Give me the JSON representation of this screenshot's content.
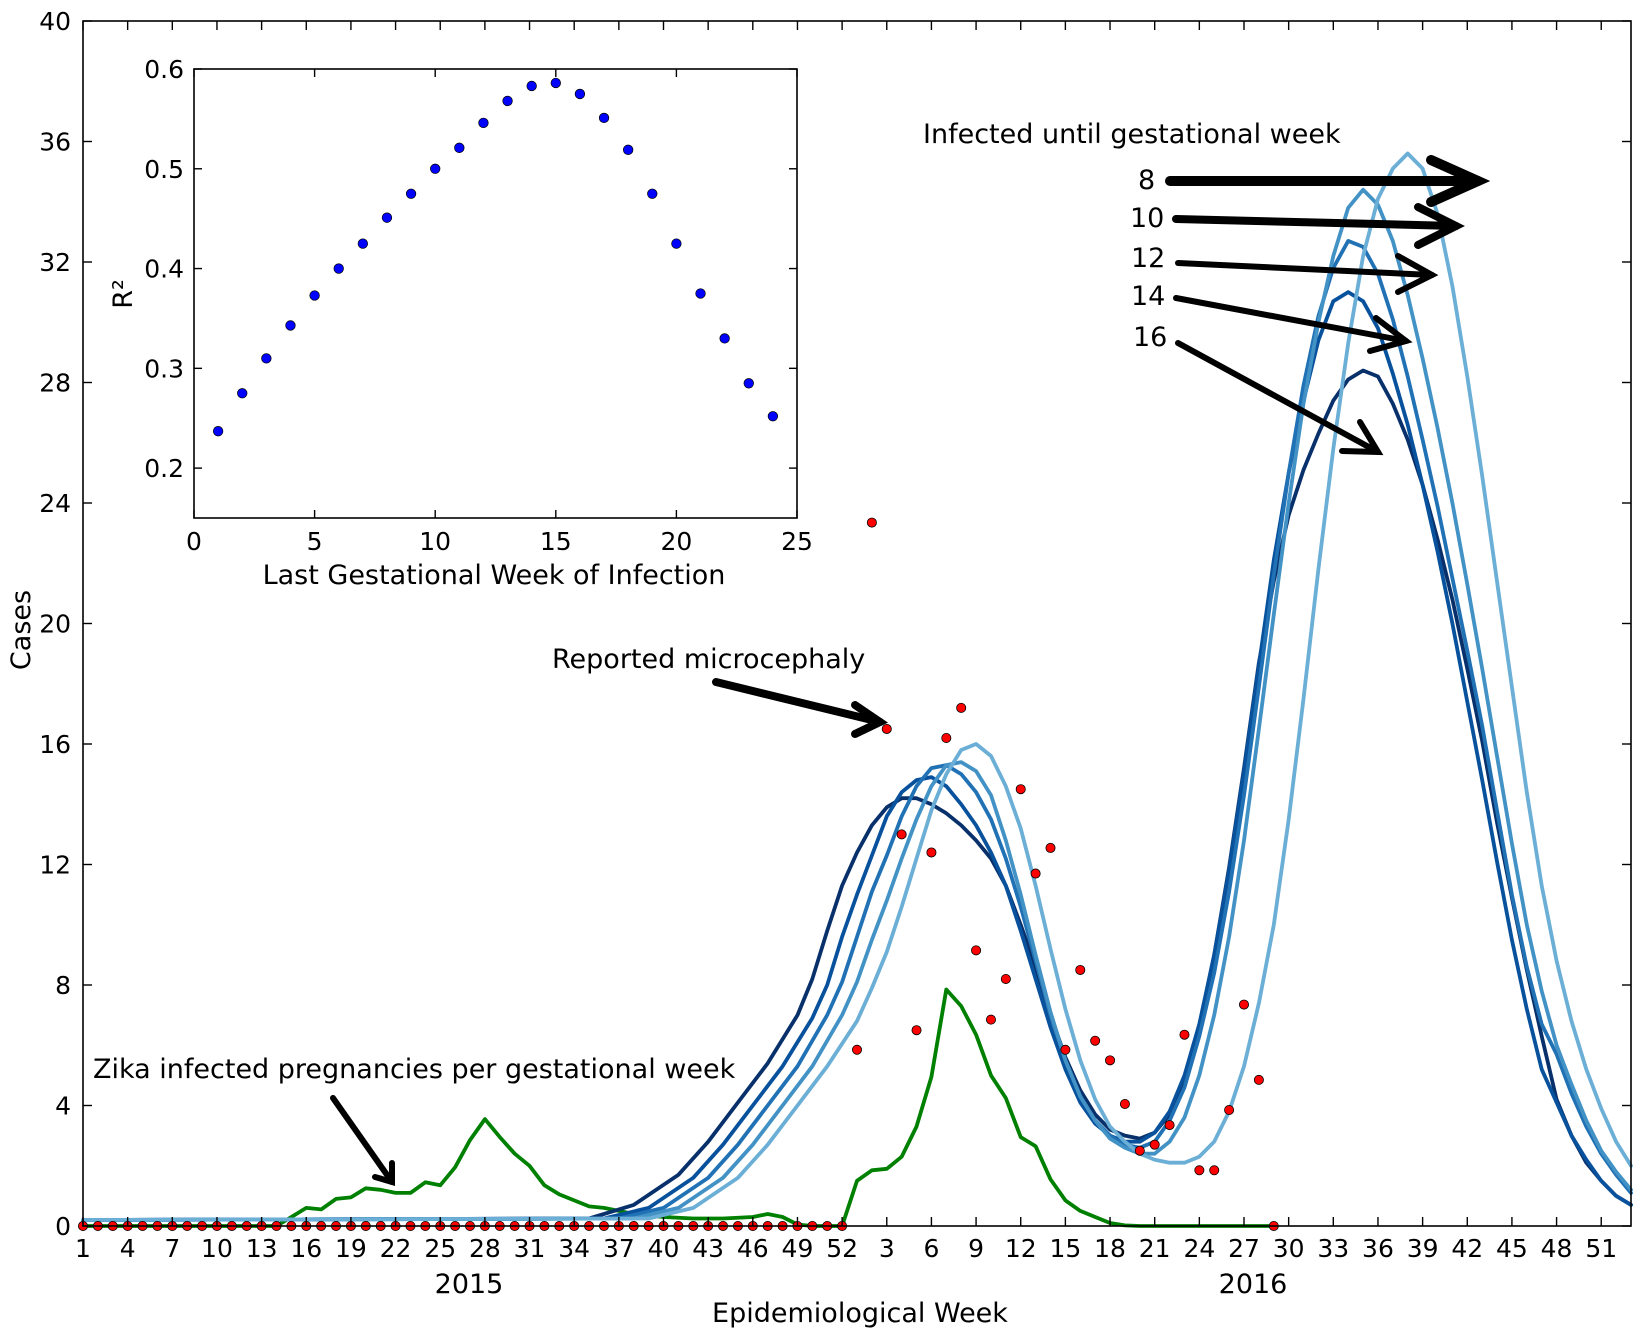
{
  "chart_data": [
    {
      "type": "line",
      "ylabel": "Cases",
      "xlabel": "Epidemiological Week",
      "ylim": [
        0,
        40
      ],
      "y_ticks": [
        0,
        4,
        8,
        12,
        16,
        20,
        24,
        28,
        32,
        36,
        40
      ],
      "x_tick_labels": [
        "1",
        "4",
        "7",
        "10",
        "13",
        "16",
        "19",
        "22",
        "25",
        "28",
        "31",
        "34",
        "37",
        "40",
        "43",
        "46",
        "49",
        "52",
        "3",
        "6",
        "9",
        "12",
        "15",
        "18",
        "21",
        "24",
        "27",
        "30",
        "33",
        "36",
        "39",
        "42",
        "45",
        "48",
        "51"
      ],
      "year_labels": [
        "2015",
        "2016"
      ],
      "x_unit": "week index (1 = 2015 week 1; 53 = 2016 week 1)",
      "series": [
        {
          "name": "Zika infected pregnancies per gestational week",
          "color": "#008000",
          "x": [
            1,
            14,
            15,
            16,
            17,
            18,
            19,
            20,
            21,
            22,
            23,
            24,
            25,
            26,
            27,
            28,
            29,
            30,
            31,
            32,
            33,
            34,
            35,
            36,
            37,
            38,
            40,
            42,
            44,
            46,
            47,
            48,
            49,
            50,
            51,
            52,
            53,
            54,
            55,
            56,
            57,
            58,
            59,
            60,
            61,
            62,
            63,
            64,
            65,
            66,
            67,
            68,
            69,
            70,
            71,
            72,
            74,
            76,
            78,
            80,
            81
          ],
          "values": [
            0,
            0,
            0.3,
            0.6,
            0.55,
            0.9,
            0.95,
            1.25,
            1.2,
            1.1,
            1.1,
            1.45,
            1.35,
            1.95,
            2.85,
            3.55,
            2.95,
            2.4,
            2.0,
            1.35,
            1.05,
            0.85,
            0.65,
            0.6,
            0.5,
            0.4,
            0.3,
            0.25,
            0.25,
            0.3,
            0.4,
            0.3,
            0.05,
            0,
            0,
            0,
            1.5,
            1.85,
            1.9,
            2.3,
            3.3,
            4.95,
            7.85,
            7.3,
            6.35,
            5.0,
            4.25,
            2.95,
            2.65,
            1.55,
            0.85,
            0.5,
            0.3,
            0.1,
            0.02,
            0,
            0,
            0,
            0,
            0,
            0
          ]
        },
        {
          "name": "Infected until gestational week 16",
          "color": "#08306b",
          "x": [
            1,
            35,
            38,
            41,
            43,
            45,
            47,
            49,
            50,
            51,
            52,
            53,
            54,
            55,
            56,
            57,
            58,
            59,
            60,
            61,
            62,
            63,
            64,
            65,
            66,
            67,
            68,
            69,
            70,
            71,
            72,
            73,
            74,
            75,
            76,
            77,
            78,
            79,
            80,
            81,
            82,
            83,
            84,
            85,
            86,
            87,
            88,
            89,
            90,
            91,
            92,
            93,
            94,
            95,
            96,
            97,
            98,
            99,
            100,
            101,
            102,
            103,
            104,
            105
          ],
          "values": [
            0.2,
            0.25,
            0.7,
            1.7,
            2.8,
            4.1,
            5.4,
            7.0,
            8.2,
            9.8,
            11.3,
            12.4,
            13.3,
            13.9,
            14.2,
            14.2,
            14.0,
            13.7,
            13.3,
            12.8,
            12.2,
            11.3,
            10.0,
            8.6,
            7.0,
            5.6,
            4.5,
            3.7,
            3.2,
            3.0,
            2.9,
            3.1,
            3.7,
            4.9,
            6.6,
            9.0,
            11.9,
            15.2,
            18.7,
            21.4,
            23.6,
            25.1,
            26.3,
            27.4,
            28.1,
            28.4,
            28.2,
            27.3,
            26.1,
            24.6,
            22.8,
            20.8,
            18.5,
            16.1,
            13.4,
            10.9,
            8.5,
            6.3,
            4.2,
            3.0,
            2.1,
            1.5,
            1.0,
            0.7
          ]
        },
        {
          "name": "Infected until gestational week 14",
          "color": "#08519c",
          "x": [
            1,
            36,
            39,
            42,
            44,
            46,
            48,
            50,
            51,
            52,
            53,
            54,
            55,
            56,
            57,
            58,
            59,
            60,
            61,
            62,
            63,
            64,
            65,
            66,
            67,
            68,
            69,
            70,
            71,
            72,
            73,
            74,
            75,
            76,
            77,
            78,
            79,
            80,
            81,
            82,
            83,
            84,
            85,
            86,
            87,
            88,
            89,
            90,
            91,
            92,
            93,
            94,
            95,
            96,
            97,
            98,
            99,
            100,
            101,
            102,
            103,
            104,
            105
          ],
          "values": [
            0.2,
            0.25,
            0.6,
            1.6,
            2.7,
            4.0,
            5.3,
            6.9,
            8.0,
            9.6,
            11.0,
            12.3,
            13.6,
            14.4,
            14.8,
            14.9,
            14.6,
            14.0,
            13.3,
            12.4,
            11.3,
            9.8,
            8.2,
            6.6,
            5.2,
            4.1,
            3.4,
            3.0,
            2.8,
            2.8,
            3.1,
            3.8,
            5.0,
            6.7,
            9.0,
            11.8,
            15.1,
            18.6,
            22.1,
            25.0,
            27.4,
            29.4,
            30.7,
            31.0,
            30.7,
            29.8,
            28.3,
            26.6,
            24.6,
            22.4,
            20.0,
            17.4,
            14.8,
            12.1,
            9.5,
            7.2,
            5.2,
            4.1,
            3.0,
            2.2,
            1.5,
            1.0,
            0.7
          ]
        },
        {
          "name": "Infected until gestational week 12",
          "color": "#2171b5",
          "x": [
            1,
            37,
            40,
            43,
            45,
            47,
            49,
            51,
            52,
            53,
            54,
            55,
            56,
            57,
            58,
            59,
            60,
            61,
            62,
            63,
            64,
            65,
            66,
            67,
            68,
            69,
            70,
            71,
            72,
            73,
            74,
            75,
            76,
            77,
            78,
            79,
            80,
            81,
            82,
            83,
            84,
            85,
            86,
            87,
            88,
            89,
            90,
            91,
            92,
            93,
            94,
            95,
            96,
            97,
            98,
            99,
            100,
            101,
            102,
            103,
            104,
            105
          ],
          "values": [
            0.2,
            0.25,
            0.6,
            1.6,
            2.7,
            4.0,
            5.3,
            7.0,
            8.1,
            9.6,
            11.1,
            12.3,
            13.6,
            14.6,
            15.2,
            15.3,
            15.0,
            14.4,
            13.5,
            12.2,
            10.6,
            8.8,
            7.0,
            5.5,
            4.3,
            3.5,
            3.0,
            2.7,
            2.6,
            2.8,
            3.5,
            4.6,
            6.3,
            8.4,
            11.1,
            14.3,
            17.9,
            21.6,
            25.0,
            27.9,
            30.2,
            31.8,
            32.7,
            32.5,
            31.6,
            30.1,
            28.2,
            26.1,
            23.9,
            21.5,
            19.1,
            16.6,
            13.8,
            11.0,
            8.6,
            6.7,
            5.7,
            4.4,
            3.3,
            2.4,
            1.7,
            1.1
          ]
        },
        {
          "name": "Infected until gestational week 10",
          "color": "#4292c6",
          "x": [
            1,
            38,
            41,
            44,
            46,
            48,
            50,
            52,
            53,
            54,
            55,
            56,
            57,
            58,
            59,
            60,
            61,
            62,
            63,
            64,
            65,
            66,
            67,
            68,
            69,
            70,
            71,
            72,
            73,
            74,
            75,
            76,
            77,
            78,
            79,
            80,
            81,
            82,
            83,
            84,
            85,
            86,
            87,
            88,
            89,
            90,
            91,
            92,
            93,
            94,
            95,
            96,
            97,
            98,
            99,
            100,
            101,
            102,
            103,
            104,
            105
          ],
          "values": [
            0.2,
            0.25,
            0.6,
            1.6,
            2.7,
            4.0,
            5.3,
            7.0,
            8.1,
            9.5,
            10.8,
            12.2,
            13.5,
            14.6,
            15.3,
            15.4,
            15.1,
            14.3,
            12.8,
            11.0,
            9.0,
            7.1,
            5.5,
            4.3,
            3.5,
            2.9,
            2.6,
            2.4,
            2.4,
            2.8,
            3.6,
            5.0,
            7.0,
            9.6,
            12.8,
            16.5,
            20.3,
            24.0,
            27.3,
            30.0,
            32.2,
            33.8,
            34.4,
            33.9,
            32.7,
            30.9,
            28.8,
            26.5,
            24.0,
            21.3,
            18.5,
            15.6,
            12.7,
            10.0,
            7.8,
            6.0,
            4.7,
            3.5,
            2.5,
            1.8,
            1.2
          ]
        },
        {
          "name": "Infected until gestational week 8",
          "color": "#6baed6",
          "x": [
            1,
            39,
            42,
            45,
            47,
            49,
            51,
            53,
            54,
            55,
            56,
            57,
            58,
            59,
            60,
            61,
            62,
            63,
            64,
            65,
            66,
            67,
            68,
            69,
            70,
            71,
            72,
            73,
            74,
            75,
            76,
            77,
            78,
            79,
            80,
            81,
            82,
            83,
            84,
            85,
            86,
            87,
            88,
            89,
            90,
            91,
            92,
            93,
            94,
            95,
            96,
            97,
            98,
            99,
            100,
            101,
            102,
            103,
            104,
            105
          ],
          "values": [
            0.2,
            0.25,
            0.6,
            1.6,
            2.7,
            4.0,
            5.3,
            6.8,
            7.9,
            9.1,
            10.6,
            12.2,
            13.8,
            15.0,
            15.8,
            16.0,
            15.6,
            14.6,
            13.2,
            11.3,
            9.2,
            7.2,
            5.5,
            4.2,
            3.3,
            2.8,
            2.4,
            2.2,
            2.1,
            2.1,
            2.3,
            2.8,
            3.8,
            5.3,
            7.4,
            10.0,
            13.5,
            17.5,
            21.8,
            25.8,
            29.3,
            32.2,
            34.1,
            35.1,
            35.6,
            35.1,
            33.6,
            31.2,
            28.2,
            24.9,
            21.4,
            17.9,
            14.4,
            11.3,
            8.8,
            6.8,
            5.2,
            3.9,
            2.8,
            2.0
          ]
        },
        {
          "name": "Reported microcephaly",
          "type": "scatter",
          "color": "#ff0000",
          "x": [
            1,
            2,
            3,
            4,
            5,
            6,
            7,
            8,
            9,
            10,
            11,
            12,
            13,
            14,
            15,
            16,
            17,
            18,
            19,
            20,
            21,
            22,
            23,
            24,
            25,
            26,
            27,
            28,
            29,
            30,
            31,
            32,
            33,
            34,
            35,
            36,
            37,
            38,
            39,
            40,
            41,
            42,
            43,
            44,
            45,
            46,
            47,
            48,
            49,
            50,
            51,
            52,
            53,
            54,
            55,
            56,
            57,
            58,
            59,
            60,
            61,
            62,
            63,
            64,
            65,
            66,
            67,
            68,
            69,
            70,
            71,
            72,
            73,
            74,
            75,
            76,
            77,
            78,
            79,
            80,
            81
          ],
          "values": [
            0,
            0,
            0,
            0,
            0,
            0,
            0,
            0,
            0,
            0,
            0,
            0,
            0,
            0,
            0,
            0,
            0,
            0,
            0,
            0,
            0,
            0,
            0,
            0,
            0,
            0,
            0,
            0,
            0,
            0,
            0,
            0,
            0,
            0,
            0,
            0,
            0,
            0,
            0,
            0,
            0,
            0,
            0,
            0,
            0,
            0,
            0,
            0,
            0,
            0,
            0,
            0,
            5.85,
            23.35,
            16.5,
            13.0,
            6.5,
            12.4,
            16.2,
            17.2,
            9.15,
            6.85,
            8.2,
            14.5,
            11.7,
            12.55,
            5.85,
            8.5,
            6.15,
            5.5,
            4.05,
            2.5,
            2.7,
            3.35,
            6.35,
            1.85,
            1.85,
            3.85,
            7.35,
            4.85,
            0
          ]
        }
      ]
    },
    {
      "type": "scatter",
      "xlabel": "Last Gestational Week of Infection",
      "ylabel": "R²",
      "xlim": [
        0,
        25
      ],
      "ylim": [
        0.15,
        0.6
      ],
      "x_ticks": [
        0,
        5,
        10,
        15,
        20,
        25
      ],
      "y_ticks": [
        0.2,
        0.3,
        0.4,
        0.5,
        0.6
      ],
      "color": "#0000ff",
      "x": [
        1,
        2,
        3,
        4,
        5,
        6,
        7,
        8,
        9,
        10,
        11,
        12,
        13,
        14,
        15,
        16,
        17,
        18,
        19,
        20,
        21,
        22,
        23,
        24
      ],
      "values": [
        0.237,
        0.275,
        0.31,
        0.343,
        0.373,
        0.4,
        0.425,
        0.451,
        0.475,
        0.5,
        0.521,
        0.546,
        0.568,
        0.583,
        0.586,
        0.575,
        0.551,
        0.519,
        0.475,
        0.425,
        0.375,
        0.33,
        0.285,
        0.252
      ]
    }
  ],
  "annotations": {
    "zika_label": "Zika infected pregnancies per gestational week",
    "microcephaly_label": "Reported microcephaly",
    "infected_until_title": "Infected until gestational week",
    "infected_until_weeks": [
      "8",
      "10",
      "12",
      "14",
      "16"
    ]
  }
}
